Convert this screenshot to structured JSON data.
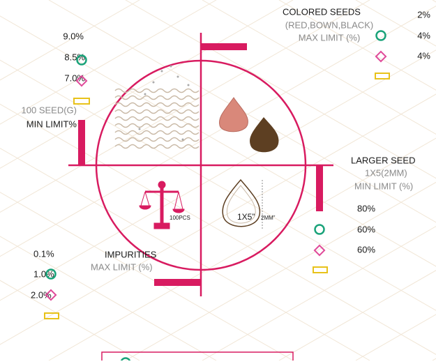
{
  "colored_seeds": {
    "title": "COLORED SEEDS",
    "subtitle": "(RED,BOWN,BLACK)",
    "limit": "MAX LIMIT (%)",
    "values": [
      "2%",
      "4%",
      "4%"
    ]
  },
  "hundred_seed": {
    "title": "100 SEED(G)",
    "limit": "MIN LIMIT%",
    "values": [
      "9.0%",
      "8.5%",
      "7.0%"
    ]
  },
  "larger_seed": {
    "title": "LARGER SEED",
    "subtitle": "1X5(2MM)",
    "limit": "MIN LIMIT (%)",
    "values": [
      "80%",
      "60%",
      "60%"
    ]
  },
  "impurities": {
    "title": "IMPURITIES",
    "limit": "MAX LIMIT (%)",
    "values": [
      "0.1%",
      "1.0%",
      "2.0%"
    ]
  },
  "icon_labels": {
    "count": "100PCS",
    "size": "1X5”",
    "size_unit": "2MM”"
  }
}
